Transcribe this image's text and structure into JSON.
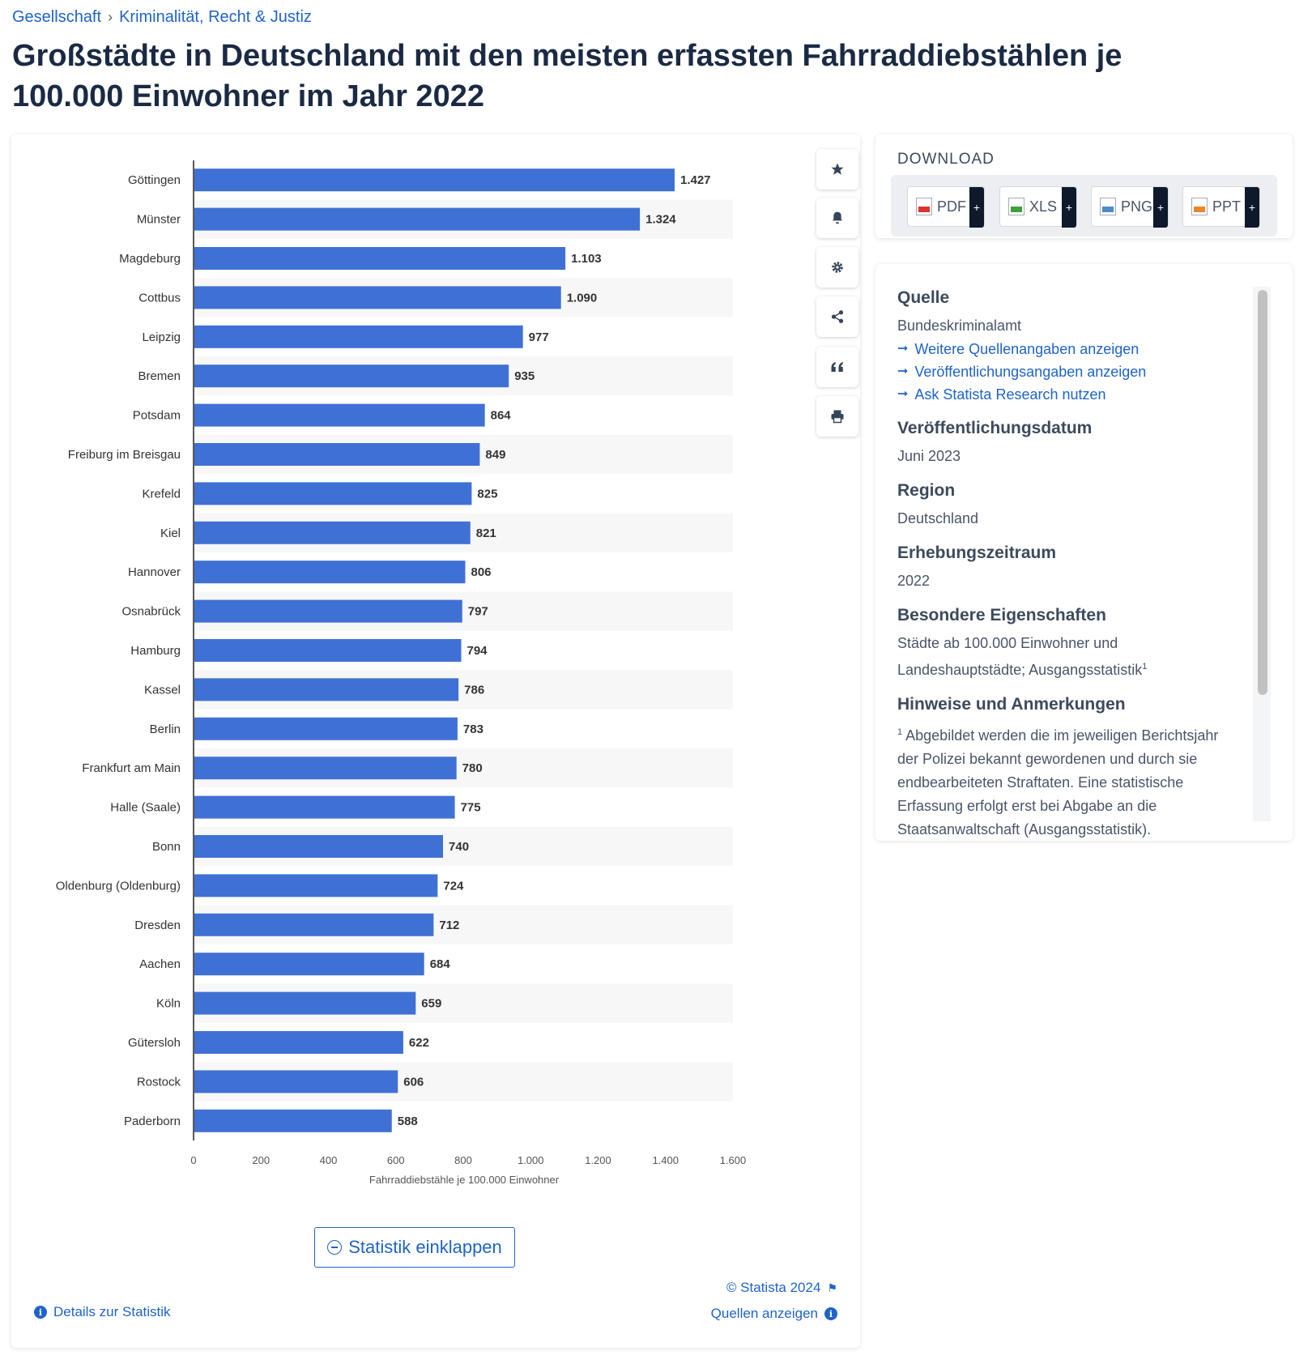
{
  "breadcrumb": {
    "item1": "Gesellschaft",
    "sep": "›",
    "item2": "Kriminalität, Recht & Justiz"
  },
  "page": {
    "title": "Großstädte in Deutschland mit den meisten erfassten Fahrraddiebstählen je 100.000 Einwohner im Jahr 2022"
  },
  "chart_data": {
    "type": "bar",
    "orientation": "horizontal",
    "categories": [
      "Göttingen",
      "Münster",
      "Magdeburg",
      "Cottbus",
      "Leipzig",
      "Bremen",
      "Potsdam",
      "Freiburg im Breisgau",
      "Krefeld",
      "Kiel",
      "Hannover",
      "Osnabrück",
      "Hamburg",
      "Kassel",
      "Berlin",
      "Frankfurt am Main",
      "Halle (Saale)",
      "Bonn",
      "Oldenburg (Oldenburg)",
      "Dresden",
      "Aachen",
      "Köln",
      "Gütersloh",
      "Rostock",
      "Paderborn"
    ],
    "values": [
      1427,
      1324,
      1103,
      1090,
      977,
      935,
      864,
      849,
      825,
      821,
      806,
      797,
      794,
      786,
      783,
      780,
      775,
      740,
      724,
      712,
      684,
      659,
      622,
      606,
      588
    ],
    "value_labels": [
      "1.427",
      "1.324",
      "1.103",
      "1.090",
      "977",
      "935",
      "864",
      "849",
      "825",
      "821",
      "806",
      "797",
      "794",
      "786",
      "783",
      "780",
      "775",
      "740",
      "724",
      "712",
      "684",
      "659",
      "622",
      "606",
      "588"
    ],
    "xlabel": "Fahrraddiebstähle je 100.000 Einwohner",
    "xticks": [
      0,
      200,
      400,
      600,
      800,
      1000,
      1200,
      1400,
      1600
    ],
    "xtick_labels": [
      "0",
      "200",
      "400",
      "600",
      "800",
      "1.000",
      "1.200",
      "1.400",
      "1.600"
    ],
    "xlim": [
      0,
      1600
    ],
    "bar_color": "#3f71d4",
    "grid": false,
    "alternating_row_shading": true
  },
  "toolbar": {
    "icons": [
      "star-icon",
      "bell-icon",
      "gear-icon",
      "share-icon",
      "quote-icon",
      "print-icon"
    ]
  },
  "actions": {
    "collapse_label": "Statistik einklappen",
    "copyright": "© Statista 2024",
    "sources_label": "Quellen anzeigen",
    "details_label": "Details zur Statistik"
  },
  "download": {
    "title": "DOWNLOAD",
    "buttons": [
      {
        "label": "PDF",
        "color": "#d9342b"
      },
      {
        "label": "XLS",
        "color": "#3ea23a"
      },
      {
        "label": "PNG",
        "color": "#4d8bc9"
      },
      {
        "label": "PPT",
        "color": "#e8862a"
      }
    ],
    "plus": "+"
  },
  "info": {
    "source_heading": "Quelle",
    "source_value": "Bundeskriminalamt",
    "links": [
      "Weitere Quellenangaben anzeigen",
      "Veröffentlichungsangaben anzeigen",
      "Ask Statista Research nutzen"
    ],
    "date_heading": "Veröffentlichungsdatum",
    "date_value": "Juni 2023",
    "region_heading": "Region",
    "region_value": "Deutschland",
    "period_heading": "Erhebungszeitraum",
    "period_value": "2022",
    "props_heading": "Besondere Eigenschaften",
    "props_value": "Städte ab 100.000 Einwohner und Landeshauptstädte; Ausgangsstatistik",
    "props_sup": "1",
    "notes_heading": "Hinweise und Anmerkungen",
    "notes_sup": "1",
    "notes_value": "Abgebildet werden die im jeweiligen Berichtsjahr der Polizei bekannt gewordenen und durch sie endbearbeiteten Straftaten. Eine statistische Erfassung erfolgt erst bei Abgabe an die Staatsanwaltschaft (Ausgangsstatistik)."
  }
}
